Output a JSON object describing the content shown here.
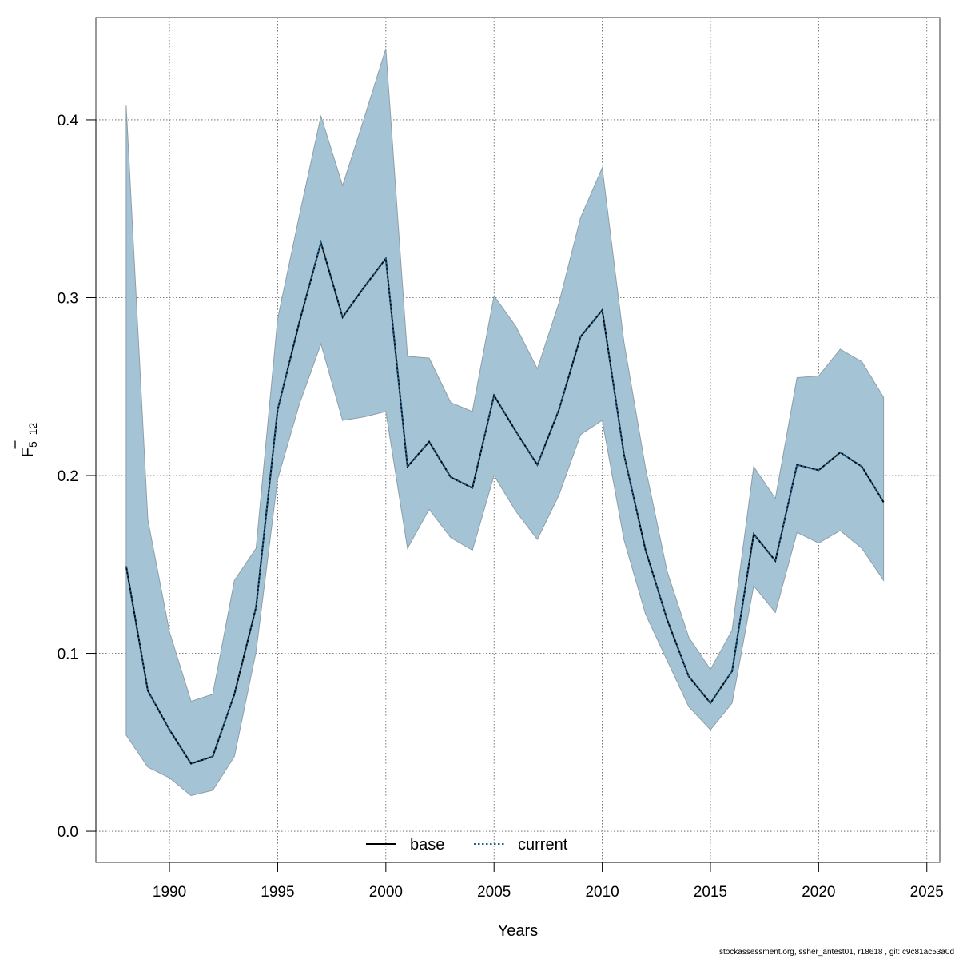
{
  "chart_data": {
    "type": "line",
    "title": "",
    "xlabel": "Years",
    "ylabel": {
      "base": "F",
      "subscript": "5–12"
    },
    "xlim": [
      1986.6,
      2025.6
    ],
    "ylim": [
      -0.0175,
      0.4575
    ],
    "xticks": [
      1990,
      1995,
      2000,
      2005,
      2010,
      2015,
      2020,
      2025
    ],
    "yticks": [
      0.0,
      0.1,
      0.2,
      0.3,
      0.4
    ],
    "xtick_labels": [
      "1990",
      "1995",
      "2000",
      "2005",
      "2010",
      "2015",
      "2020",
      "2025"
    ],
    "ytick_labels": [
      "0.0",
      "0.1",
      "0.2",
      "0.3",
      "0.4"
    ],
    "grid": true,
    "legend_position": "bottom-center",
    "x": [
      1988,
      1989,
      1990,
      1991,
      1992,
      1993,
      1994,
      1995,
      1996,
      1997,
      1998,
      1999,
      2000,
      2001,
      2002,
      2003,
      2004,
      2005,
      2006,
      2007,
      2008,
      2009,
      2010,
      2011,
      2012,
      2013,
      2014,
      2015,
      2016,
      2017,
      2018,
      2019,
      2020,
      2021,
      2022,
      2023
    ],
    "band": {
      "color": "#a4c4d5",
      "edge_color": "#8e9ea8",
      "upper": [
        0.408,
        0.175,
        0.112,
        0.073,
        0.077,
        0.141,
        0.159,
        0.288,
        0.346,
        0.402,
        0.363,
        0.401,
        0.44,
        0.267,
        0.266,
        0.241,
        0.236,
        0.301,
        0.284,
        0.26,
        0.297,
        0.345,
        0.373,
        0.275,
        0.204,
        0.146,
        0.109,
        0.091,
        0.113,
        0.205,
        0.187,
        0.255,
        0.256,
        0.271,
        0.264,
        0.244
      ],
      "lower": [
        0.054,
        0.036,
        0.03,
        0.02,
        0.023,
        0.042,
        0.101,
        0.198,
        0.24,
        0.274,
        0.231,
        0.233,
        0.236,
        0.159,
        0.181,
        0.165,
        0.158,
        0.2,
        0.18,
        0.164,
        0.189,
        0.223,
        0.231,
        0.164,
        0.122,
        0.096,
        0.07,
        0.057,
        0.072,
        0.138,
        0.123,
        0.168,
        0.162,
        0.169,
        0.159,
        0.141
      ]
    },
    "series": [
      {
        "name": "base",
        "color": "#000000",
        "style": "solid",
        "values": [
          0.149,
          0.079,
          0.057,
          0.038,
          0.042,
          0.077,
          0.126,
          0.237,
          0.286,
          0.331,
          0.289,
          0.306,
          0.322,
          0.205,
          0.219,
          0.199,
          0.193,
          0.245,
          0.225,
          0.206,
          0.237,
          0.278,
          0.293,
          0.212,
          0.158,
          0.119,
          0.087,
          0.072,
          0.09,
          0.167,
          0.152,
          0.206,
          0.203,
          0.213,
          0.205,
          0.185
        ]
      },
      {
        "name": "current",
        "color": "#1f5f8a",
        "style": "dotted",
        "values": [
          0.149,
          0.079,
          0.057,
          0.038,
          0.042,
          0.077,
          0.126,
          0.237,
          0.286,
          0.331,
          0.289,
          0.306,
          0.322,
          0.205,
          0.219,
          0.199,
          0.193,
          0.245,
          0.225,
          0.206,
          0.237,
          0.278,
          0.293,
          0.212,
          0.158,
          0.119,
          0.087,
          0.072,
          0.09,
          0.167,
          0.152,
          0.206,
          0.203,
          0.213,
          0.205,
          0.185
        ]
      }
    ]
  },
  "footer": "stockassessment.org, ssher_antest01, r18618 , git: c9c81ac53a0d"
}
